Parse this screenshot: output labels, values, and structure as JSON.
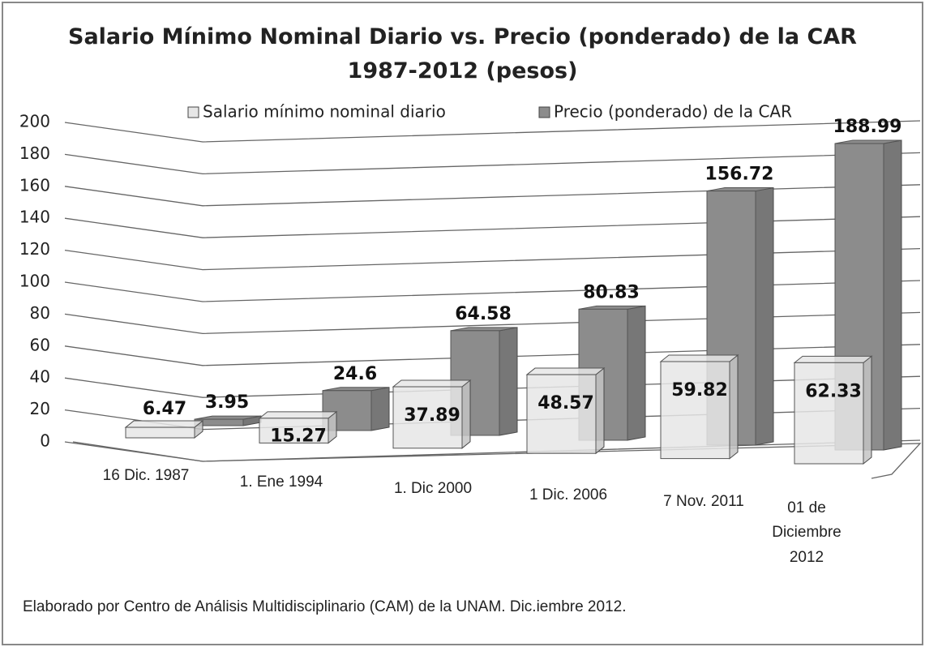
{
  "chart_data": {
    "type": "bar3d",
    "title": "Salario Mínimo Nominal Diario vs. Precio  (ponderado) de la CAR",
    "subtitle": "1987-2012 (pesos)",
    "categories": [
      "16 Dic. 1987",
      "1. Ene 1994",
      "1. Dic 2000",
      "1 Dic. 2006",
      "7 Nov. 2011",
      "01 de Diciembre 2012"
    ],
    "series": [
      {
        "name": "Salario mínimo nominal diario",
        "color": "#e6e6e6",
        "values": [
          6.47,
          15.27,
          37.89,
          48.57,
          59.82,
          62.33
        ]
      },
      {
        "name": "Precio (ponderado) de la CAR",
        "color": "#8c8c8c",
        "values": [
          3.95,
          24.6,
          64.58,
          80.83,
          156.72,
          188.99
        ]
      }
    ],
    "ylim": [
      0,
      200
    ],
    "yticks": [
      0,
      20,
      40,
      60,
      80,
      100,
      120,
      140,
      160,
      180,
      200
    ],
    "grid": true,
    "legend": "top",
    "note": "Elaborado por Centro de Análisis Multidisciplinario (CAM) de la UNAM. Dic.iembre  2012."
  }
}
